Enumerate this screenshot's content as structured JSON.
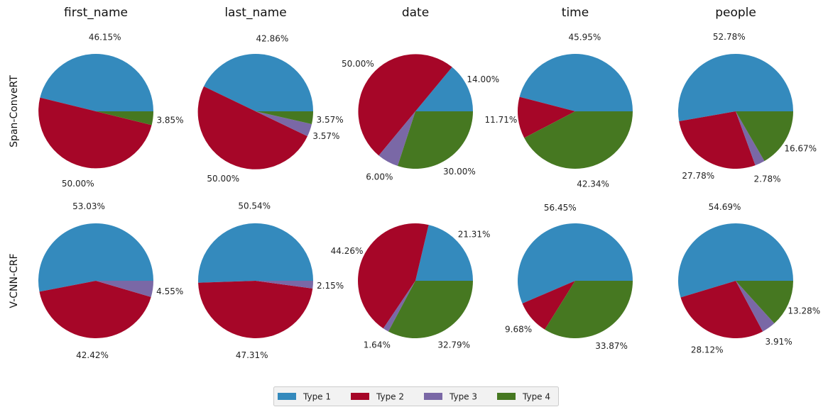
{
  "chart_data": {
    "type": "pie",
    "columns": [
      "first_name",
      "last_name",
      "date",
      "time",
      "people"
    ],
    "rows": [
      "Span-ConveRT",
      "V-CNN-CRF"
    ],
    "legend": {
      "placement": "bottom-center",
      "entries": [
        {
          "label": "Type 1",
          "color": "#348abd"
        },
        {
          "label": "Type 2",
          "color": "#a60628"
        },
        {
          "label": "Type 3",
          "color": "#7a68a6"
        },
        {
          "label": "Type 4",
          "color": "#467821"
        }
      ]
    },
    "pies": [
      {
        "row": "Span-ConveRT",
        "column": "first_name",
        "values": [
          46.15,
          50.0,
          0,
          3.85
        ],
        "labels": [
          "46.15%",
          "50.00%",
          "",
          "3.85%"
        ]
      },
      {
        "row": "Span-ConveRT",
        "column": "last_name",
        "values": [
          42.86,
          50.0,
          3.57,
          3.57
        ],
        "labels": [
          "42.86%",
          "50.00%",
          "3.57%",
          "3.57%"
        ]
      },
      {
        "row": "Span-ConveRT",
        "column": "date",
        "values": [
          14.0,
          50.0,
          6.0,
          30.0
        ],
        "labels": [
          "14.00%",
          "50.00%",
          "6.00%",
          "30.00%"
        ]
      },
      {
        "row": "Span-ConveRT",
        "column": "time",
        "values": [
          45.95,
          11.71,
          0,
          42.34
        ],
        "labels": [
          "45.95%",
          "11.71%",
          "",
          "42.34%"
        ]
      },
      {
        "row": "Span-ConveRT",
        "column": "people",
        "values": [
          52.78,
          27.78,
          2.78,
          16.67
        ],
        "labels": [
          "52.78%",
          "27.78%",
          "2.78%",
          "16.67%"
        ]
      },
      {
        "row": "V-CNN-CRF",
        "column": "first_name",
        "values": [
          53.03,
          42.42,
          4.55,
          0
        ],
        "labels": [
          "53.03%",
          "42.42%",
          "4.55%",
          ""
        ]
      },
      {
        "row": "V-CNN-CRF",
        "column": "last_name",
        "values": [
          50.54,
          47.31,
          2.15,
          0
        ],
        "labels": [
          "50.54%",
          "47.31%",
          "2.15%",
          ""
        ]
      },
      {
        "row": "V-CNN-CRF",
        "column": "date",
        "values": [
          21.31,
          44.26,
          1.64,
          32.79
        ],
        "labels": [
          "21.31%",
          "44.26%",
          "1.64%",
          "32.79%"
        ]
      },
      {
        "row": "V-CNN-CRF",
        "column": "time",
        "values": [
          56.45,
          9.68,
          0,
          33.87
        ],
        "labels": [
          "56.45%",
          "9.68%",
          "",
          "33.87%"
        ]
      },
      {
        "row": "V-CNN-CRF",
        "column": "people",
        "values": [
          54.69,
          28.12,
          3.91,
          13.28
        ],
        "labels": [
          "54.69%",
          "28.12%",
          "3.91%",
          "13.28%"
        ]
      }
    ]
  }
}
